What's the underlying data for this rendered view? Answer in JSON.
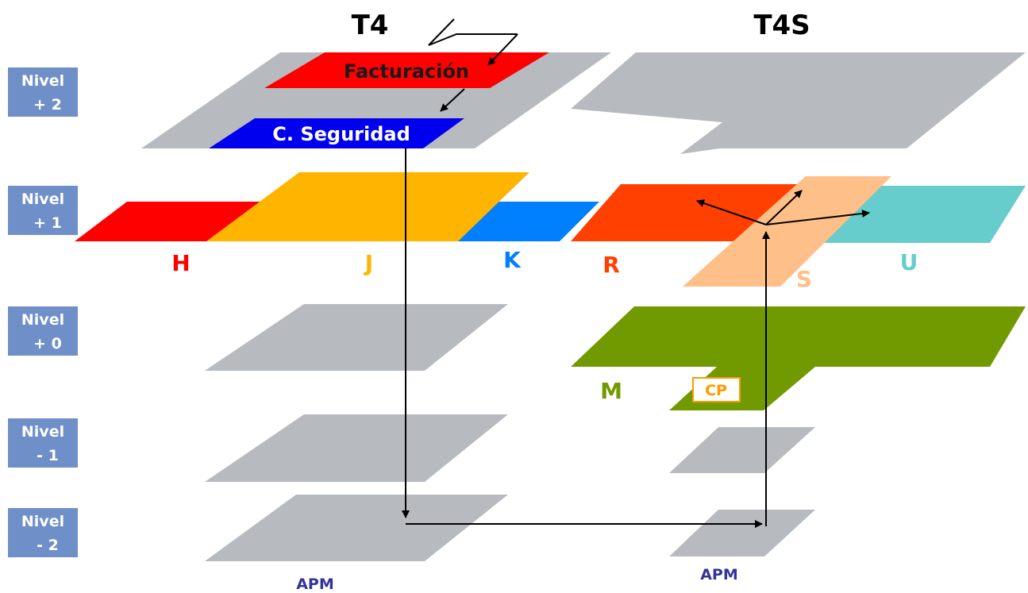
{
  "terminals": {
    "t4": "T4",
    "t4s": "T4S"
  },
  "levels": [
    {
      "line1": "Nivel",
      "line2": "+ 2"
    },
    {
      "line1": "Nivel",
      "line2": "+ 1"
    },
    {
      "line1": "Nivel",
      "line2": "+ 0"
    },
    {
      "line1": "Nivel",
      "line2": "- 1"
    },
    {
      "line1": "Nivel",
      "line2": "- 2"
    }
  ],
  "areas": {
    "facturacion": "Facturación",
    "seguridad": "C. Seguridad",
    "H": "H",
    "J": "J",
    "K": "K",
    "R": "R",
    "S": "S",
    "U": "U",
    "M": "M",
    "CP": "CP"
  },
  "apm": {
    "t4": "APM",
    "t4s": "APM"
  },
  "colors": {
    "floor": "#b7bbbf",
    "level_box": "#6f8fc9",
    "facturacion": "#ff0000",
    "seguridad": "#0000ee",
    "H": "#ff0000",
    "J": "#ffb400",
    "K": "#0080ff",
    "R": "#ff4000",
    "S": "#ffbf88",
    "U": "#66cdcc",
    "M": "#719900",
    "CP": "#ff9900",
    "apm": "#333399"
  }
}
